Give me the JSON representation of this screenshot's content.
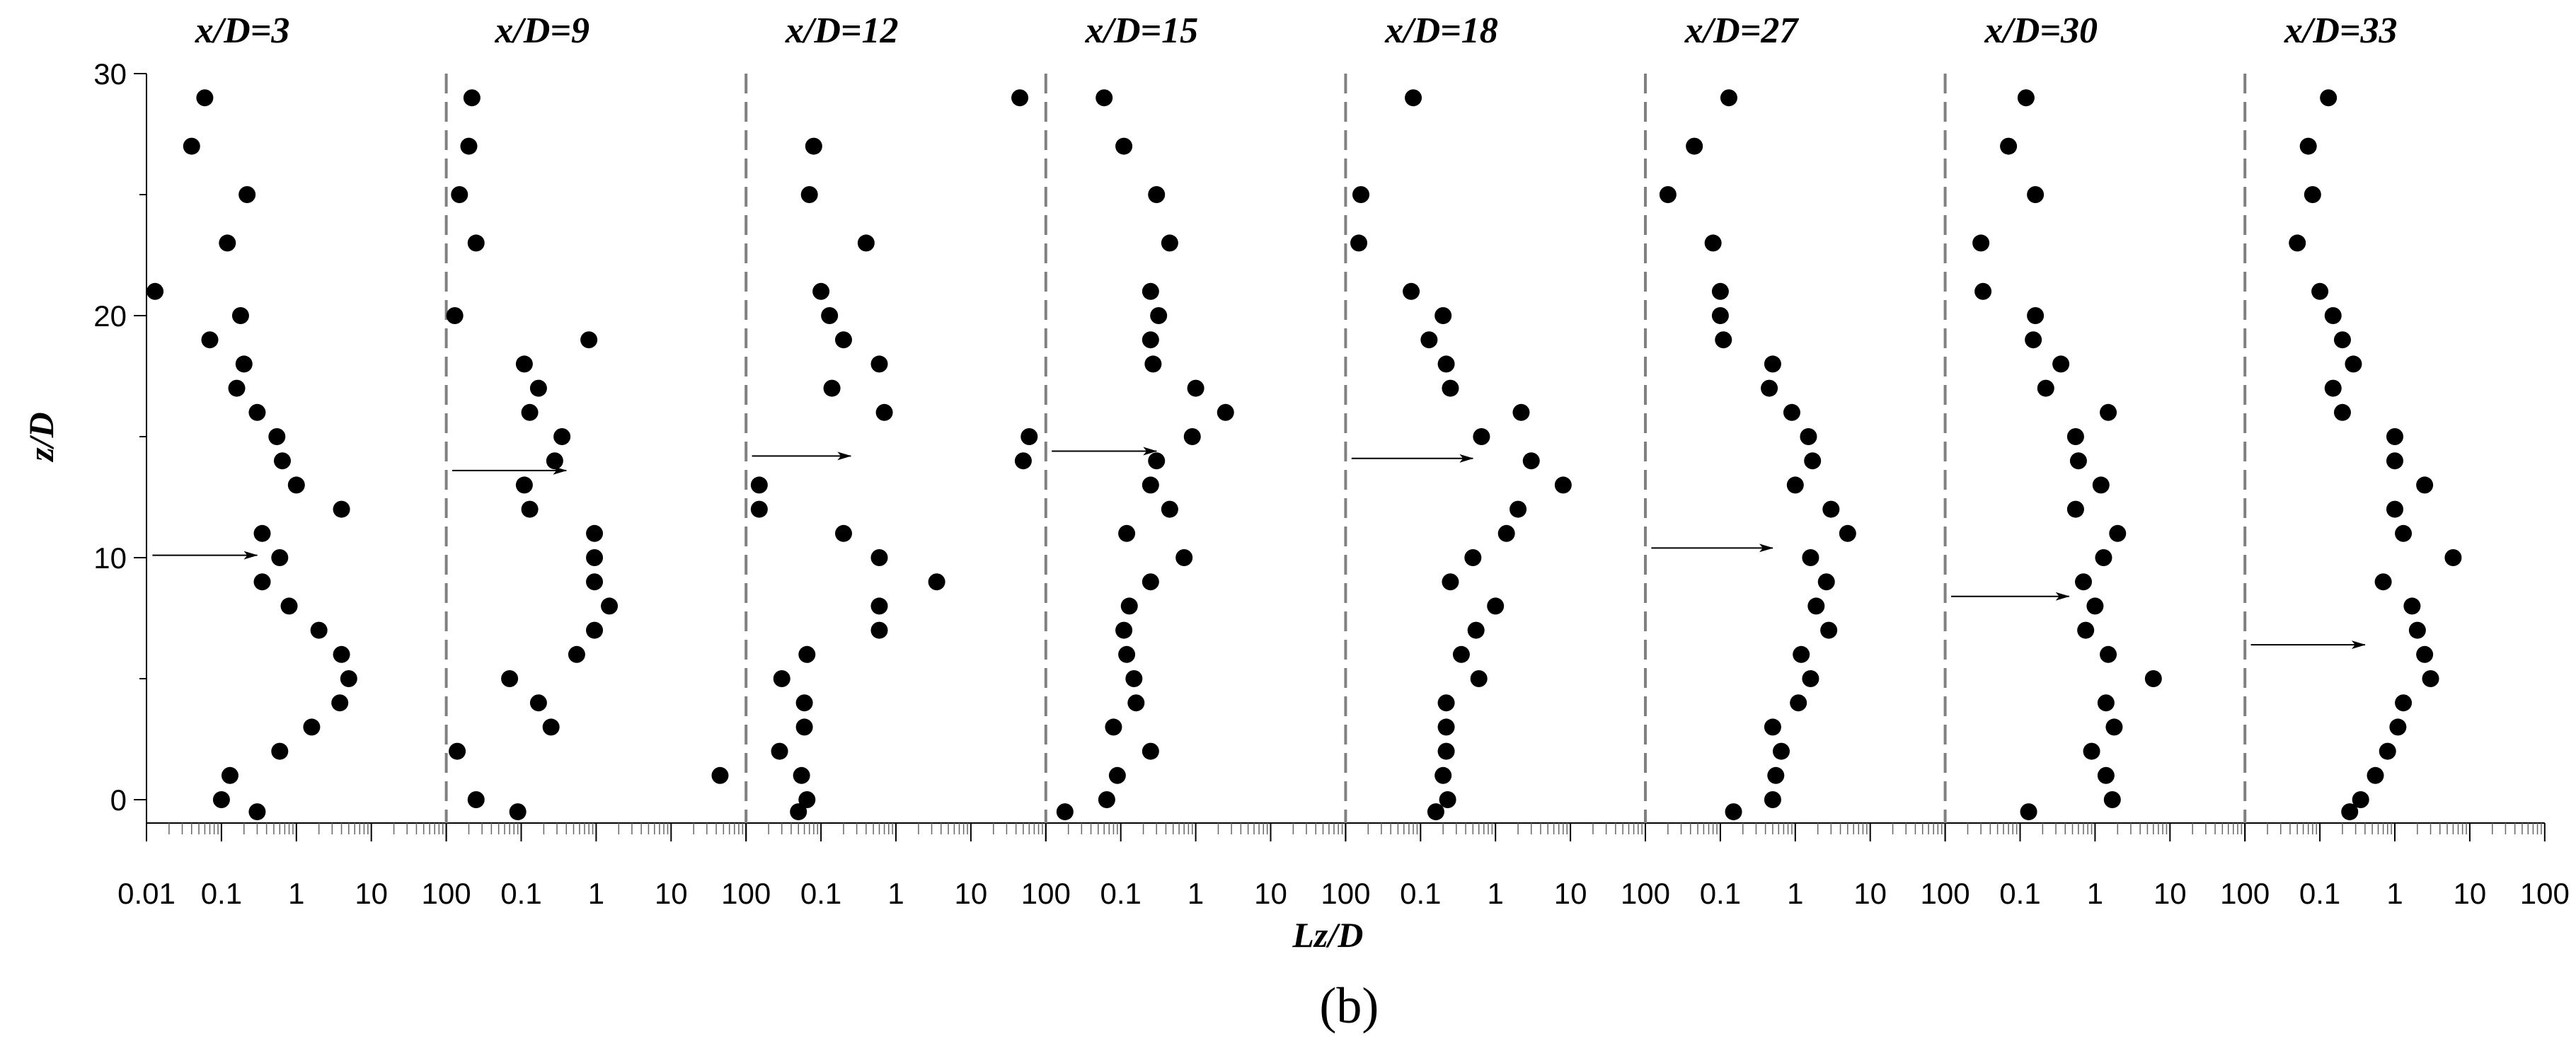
{
  "chart_data": {
    "type": "scatter",
    "caption": "(b)",
    "xlabel": "Lz/D",
    "ylabel": "z/D",
    "xscale": "log",
    "panel_xlim": [
      0.01,
      100
    ],
    "ylim": [
      -1,
      30
    ],
    "y_ticks": [
      "0",
      "10",
      "20",
      "30"
    ],
    "x_ticks_first": [
      "0.01",
      "0.1",
      "1",
      "10",
      "100"
    ],
    "x_ticks_other": [
      "0.1",
      "1",
      "10",
      "100"
    ],
    "marker_color": "#000000",
    "separator_color": "#808080",
    "panels": [
      {
        "title": "x/D=3",
        "arrow": {
          "z": 10.1,
          "from": 0.012,
          "to": 0.3
        },
        "points": [
          {
            "z": 29,
            "Lz": 0.06
          },
          {
            "z": 27,
            "Lz": 0.04
          },
          {
            "z": 25,
            "Lz": 0.22
          },
          {
            "z": 23,
            "Lz": 0.12
          },
          {
            "z": 21,
            "Lz": 0.013
          },
          {
            "z": 20,
            "Lz": 0.18
          },
          {
            "z": 19,
            "Lz": 0.07
          },
          {
            "z": 18,
            "Lz": 0.2
          },
          {
            "z": 17,
            "Lz": 0.16
          },
          {
            "z": 16,
            "Lz": 0.3
          },
          {
            "z": 15,
            "Lz": 0.55
          },
          {
            "z": 14,
            "Lz": 0.65
          },
          {
            "z": 13,
            "Lz": 1.0
          },
          {
            "z": 12,
            "Lz": 4.0
          },
          {
            "z": 11,
            "Lz": 0.35
          },
          {
            "z": 10,
            "Lz": 0.6
          },
          {
            "z": 9,
            "Lz": 0.35
          },
          {
            "z": 8,
            "Lz": 0.8
          },
          {
            "z": 7,
            "Lz": 2.0
          },
          {
            "z": 6,
            "Lz": 4.0
          },
          {
            "z": 5,
            "Lz": 5.0
          },
          {
            "z": 4,
            "Lz": 3.8
          },
          {
            "z": 3,
            "Lz": 1.6
          },
          {
            "z": 2,
            "Lz": 0.6
          },
          {
            "z": 1,
            "Lz": 0.13
          },
          {
            "z": 0,
            "Lz": 0.1
          },
          {
            "z": -0.5,
            "Lz": 0.3
          }
        ]
      },
      {
        "title": "x/D=9",
        "arrow": {
          "z": 13.6,
          "from": 0.012,
          "to": 0.4
        },
        "points": [
          {
            "z": 29,
            "Lz": 0.022
          },
          {
            "z": 27,
            "Lz": 0.02
          },
          {
            "z": 25,
            "Lz": 0.015
          },
          {
            "z": 23,
            "Lz": 0.025
          },
          {
            "z": 20,
            "Lz": 0.013
          },
          {
            "z": 19,
            "Lz": 0.8
          },
          {
            "z": 18,
            "Lz": 0.11
          },
          {
            "z": 17,
            "Lz": 0.17
          },
          {
            "z": 16,
            "Lz": 0.13
          },
          {
            "z": 15,
            "Lz": 0.35
          },
          {
            "z": 14,
            "Lz": 0.28
          },
          {
            "z": 13,
            "Lz": 0.11
          },
          {
            "z": 12,
            "Lz": 0.13
          },
          {
            "z": 11,
            "Lz": 0.95
          },
          {
            "z": 10,
            "Lz": 0.95
          },
          {
            "z": 9,
            "Lz": 0.95
          },
          {
            "z": 8,
            "Lz": 1.5
          },
          {
            "z": 7,
            "Lz": 0.95
          },
          {
            "z": 6,
            "Lz": 0.55
          },
          {
            "z": 5,
            "Lz": 0.07
          },
          {
            "z": 4,
            "Lz": 0.17
          },
          {
            "z": 3,
            "Lz": 0.25
          },
          {
            "z": 2,
            "Lz": 0.014
          },
          {
            "z": 1,
            "Lz": 45
          },
          {
            "z": 0,
            "Lz": 0.025
          },
          {
            "z": -0.5,
            "Lz": 0.09
          }
        ]
      },
      {
        "title": "x/D=12",
        "arrow": {
          "z": 14.2,
          "from": 0.012,
          "to": 0.25
        },
        "points": [
          {
            "z": 29,
            "Lz": 45
          },
          {
            "z": 27,
            "Lz": 0.08
          },
          {
            "z": 25,
            "Lz": 0.07
          },
          {
            "z": 23,
            "Lz": 0.4
          },
          {
            "z": 21,
            "Lz": 0.1
          },
          {
            "z": 20,
            "Lz": 0.13
          },
          {
            "z": 19,
            "Lz": 0.2
          },
          {
            "z": 18,
            "Lz": 0.6
          },
          {
            "z": 17,
            "Lz": 0.14
          },
          {
            "z": 16,
            "Lz": 0.7
          },
          {
            "z": 15,
            "Lz": 60
          },
          {
            "z": 14,
            "Lz": 50
          },
          {
            "z": 13,
            "Lz": 0.015
          },
          {
            "z": 12,
            "Lz": 0.015
          },
          {
            "z": 11,
            "Lz": 0.2
          },
          {
            "z": 10,
            "Lz": 0.6
          },
          {
            "z": 9,
            "Lz": 3.5
          },
          {
            "z": 8,
            "Lz": 0.6
          },
          {
            "z": 7,
            "Lz": 0.6
          },
          {
            "z": 6,
            "Lz": 0.065
          },
          {
            "z": 5,
            "Lz": 0.03
          },
          {
            "z": 4,
            "Lz": 0.06
          },
          {
            "z": 3,
            "Lz": 0.06
          },
          {
            "z": 2,
            "Lz": 0.028
          },
          {
            "z": 1,
            "Lz": 0.055
          },
          {
            "z": 0,
            "Lz": 0.065
          },
          {
            "z": -0.5,
            "Lz": 0.05
          }
        ]
      },
      {
        "title": "x/D=15",
        "arrow": {
          "z": 14.4,
          "from": 0.012,
          "to": 0.3
        },
        "points": [
          {
            "z": 29,
            "Lz": 0.06
          },
          {
            "z": 27,
            "Lz": 0.11
          },
          {
            "z": 25,
            "Lz": 0.3
          },
          {
            "z": 23,
            "Lz": 0.45
          },
          {
            "z": 21,
            "Lz": 0.25
          },
          {
            "z": 20,
            "Lz": 0.32
          },
          {
            "z": 19,
            "Lz": 0.25
          },
          {
            "z": 18,
            "Lz": 0.27
          },
          {
            "z": 17,
            "Lz": 1.0
          },
          {
            "z": 16,
            "Lz": 2.5
          },
          {
            "z": 15,
            "Lz": 0.9
          },
          {
            "z": 14,
            "Lz": 0.3
          },
          {
            "z": 13,
            "Lz": 0.25
          },
          {
            "z": 12,
            "Lz": 0.45
          },
          {
            "z": 11,
            "Lz": 0.12
          },
          {
            "z": 10,
            "Lz": 0.7
          },
          {
            "z": 9,
            "Lz": 0.25
          },
          {
            "z": 8,
            "Lz": 0.13
          },
          {
            "z": 7,
            "Lz": 0.11
          },
          {
            "z": 6,
            "Lz": 0.12
          },
          {
            "z": 5,
            "Lz": 0.15
          },
          {
            "z": 4,
            "Lz": 0.16
          },
          {
            "z": 3,
            "Lz": 0.08
          },
          {
            "z": 2,
            "Lz": 0.25
          },
          {
            "z": 1,
            "Lz": 0.09
          },
          {
            "z": 0,
            "Lz": 0.065
          },
          {
            "z": -0.5,
            "Lz": 0.018
          }
        ]
      },
      {
        "title": "x/D=18",
        "arrow": {
          "z": 14.1,
          "from": 0.012,
          "to": 0.5
        },
        "points": [
          {
            "z": 29,
            "Lz": 0.08
          },
          {
            "z": 25,
            "Lz": 0.016
          },
          {
            "z": 23,
            "Lz": 0.015
          },
          {
            "z": 21,
            "Lz": 0.075
          },
          {
            "z": 20,
            "Lz": 0.2
          },
          {
            "z": 19,
            "Lz": 0.13
          },
          {
            "z": 18,
            "Lz": 0.22
          },
          {
            "z": 17,
            "Lz": 0.25
          },
          {
            "z": 16,
            "Lz": 2.2
          },
          {
            "z": 15,
            "Lz": 0.65
          },
          {
            "z": 14,
            "Lz": 3.0
          },
          {
            "z": 13,
            "Lz": 8.0
          },
          {
            "z": 12,
            "Lz": 2.0
          },
          {
            "z": 11,
            "Lz": 1.4
          },
          {
            "z": 10,
            "Lz": 0.5
          },
          {
            "z": 9,
            "Lz": 0.25
          },
          {
            "z": 8,
            "Lz": 1.0
          },
          {
            "z": 7,
            "Lz": 0.55
          },
          {
            "z": 6,
            "Lz": 0.35
          },
          {
            "z": 5,
            "Lz": 0.6
          },
          {
            "z": 4,
            "Lz": 0.22
          },
          {
            "z": 3,
            "Lz": 0.22
          },
          {
            "z": 2,
            "Lz": 0.22
          },
          {
            "z": 1,
            "Lz": 0.2
          },
          {
            "z": 0,
            "Lz": 0.23
          },
          {
            "z": -0.5,
            "Lz": 0.16
          }
        ]
      },
      {
        "title": "x/D=27",
        "arrow": {
          "z": 10.4,
          "from": 0.012,
          "to": 0.5
        },
        "points": [
          {
            "z": 29,
            "Lz": 0.13
          },
          {
            "z": 27,
            "Lz": 0.045
          },
          {
            "z": 25,
            "Lz": 0.02
          },
          {
            "z": 23,
            "Lz": 0.08
          },
          {
            "z": 21,
            "Lz": 0.1
          },
          {
            "z": 20,
            "Lz": 0.1
          },
          {
            "z": 19,
            "Lz": 0.11
          },
          {
            "z": 18,
            "Lz": 0.5
          },
          {
            "z": 17,
            "Lz": 0.45
          },
          {
            "z": 16,
            "Lz": 0.9
          },
          {
            "z": 15,
            "Lz": 1.5
          },
          {
            "z": 14,
            "Lz": 1.7
          },
          {
            "z": 13,
            "Lz": 1.0
          },
          {
            "z": 12,
            "Lz": 3.0
          },
          {
            "z": 11,
            "Lz": 5.0
          },
          {
            "z": 10,
            "Lz": 1.6
          },
          {
            "z": 9,
            "Lz": 2.6
          },
          {
            "z": 8,
            "Lz": 1.9
          },
          {
            "z": 7,
            "Lz": 2.8
          },
          {
            "z": 6,
            "Lz": 1.2
          },
          {
            "z": 5,
            "Lz": 1.6
          },
          {
            "z": 4,
            "Lz": 1.1
          },
          {
            "z": 3,
            "Lz": 0.5
          },
          {
            "z": 2,
            "Lz": 0.65
          },
          {
            "z": 1,
            "Lz": 0.55
          },
          {
            "z": 0,
            "Lz": 0.5
          },
          {
            "z": -0.5,
            "Lz": 0.15
          }
        ]
      },
      {
        "title": "x/D=30",
        "arrow": {
          "z": 8.4,
          "from": 0.012,
          "to": 0.45
        },
        "points": [
          {
            "z": 29,
            "Lz": 0.12
          },
          {
            "z": 27,
            "Lz": 0.07
          },
          {
            "z": 25,
            "Lz": 0.16
          },
          {
            "z": 23,
            "Lz": 0.03
          },
          {
            "z": 21,
            "Lz": 0.032
          },
          {
            "z": 20,
            "Lz": 0.16
          },
          {
            "z": 19,
            "Lz": 0.15
          },
          {
            "z": 18,
            "Lz": 0.35
          },
          {
            "z": 17,
            "Lz": 0.22
          },
          {
            "z": 16,
            "Lz": 1.5
          },
          {
            "z": 15,
            "Lz": 0.55
          },
          {
            "z": 14,
            "Lz": 0.6
          },
          {
            "z": 13,
            "Lz": 1.2
          },
          {
            "z": 12,
            "Lz": 0.55
          },
          {
            "z": 11,
            "Lz": 2.0
          },
          {
            "z": 10,
            "Lz": 1.3
          },
          {
            "z": 9,
            "Lz": 0.7
          },
          {
            "z": 8,
            "Lz": 1.0
          },
          {
            "z": 7,
            "Lz": 0.75
          },
          {
            "z": 6,
            "Lz": 1.5
          },
          {
            "z": 5,
            "Lz": 6.0
          },
          {
            "z": 4,
            "Lz": 1.4
          },
          {
            "z": 3,
            "Lz": 1.8
          },
          {
            "z": 2,
            "Lz": 0.9
          },
          {
            "z": 1,
            "Lz": 1.4
          },
          {
            "z": 0,
            "Lz": 1.7
          },
          {
            "z": -0.5,
            "Lz": 0.13
          }
        ]
      },
      {
        "title": "x/D=33",
        "arrow": {
          "z": 6.4,
          "from": 0.012,
          "to": 0.4
        },
        "points": [
          {
            "z": 29,
            "Lz": 0.13
          },
          {
            "z": 27,
            "Lz": 0.07
          },
          {
            "z": 25,
            "Lz": 0.08
          },
          {
            "z": 23,
            "Lz": 0.05
          },
          {
            "z": 21,
            "Lz": 0.1
          },
          {
            "z": 20,
            "Lz": 0.15
          },
          {
            "z": 19,
            "Lz": 0.2
          },
          {
            "z": 18,
            "Lz": 0.28
          },
          {
            "z": 17,
            "Lz": 0.15
          },
          {
            "z": 16,
            "Lz": 0.2
          },
          {
            "z": 15,
            "Lz": 1.0
          },
          {
            "z": 14,
            "Lz": 1.0
          },
          {
            "z": 13,
            "Lz": 2.5
          },
          {
            "z": 12,
            "Lz": 1.0
          },
          {
            "z": 11,
            "Lz": 1.3
          },
          {
            "z": 10,
            "Lz": 6.0
          },
          {
            "z": 9,
            "Lz": 0.7
          },
          {
            "z": 8,
            "Lz": 1.7
          },
          {
            "z": 7,
            "Lz": 2.0
          },
          {
            "z": 6,
            "Lz": 2.5
          },
          {
            "z": 5,
            "Lz": 3.0
          },
          {
            "z": 4,
            "Lz": 1.3
          },
          {
            "z": 3,
            "Lz": 1.1
          },
          {
            "z": 2,
            "Lz": 0.8
          },
          {
            "z": 1,
            "Lz": 0.55
          },
          {
            "z": 0,
            "Lz": 0.35
          },
          {
            "z": -0.5,
            "Lz": 0.25
          }
        ]
      }
    ]
  }
}
